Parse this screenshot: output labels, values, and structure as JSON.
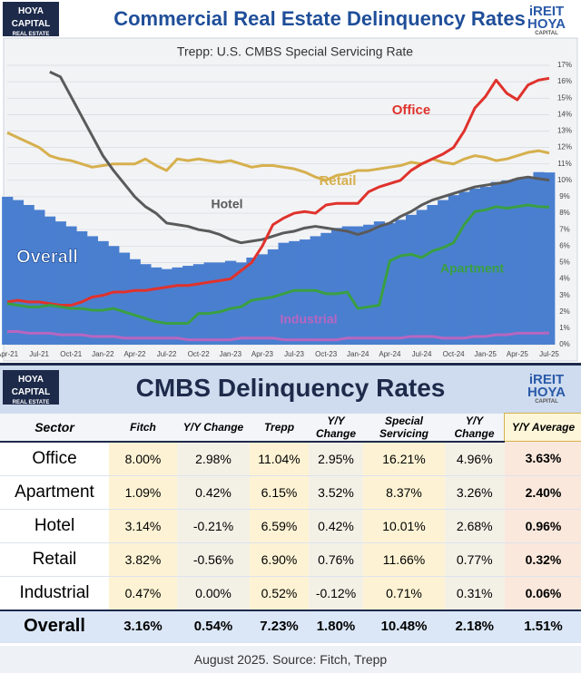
{
  "header": {
    "logo": "HOYA CAPITAL",
    "logo_sub": "REAL ESTATE",
    "brand_top": "iREIT",
    "brand_bottom": "HOYA",
    "brand_sub": "CAPITAL"
  },
  "chart_data": {
    "type": "line",
    "title": "Commercial Real Estate Delinquency Rates",
    "subtitle": "Trepp: U.S. CMBS Special Servicing Rate",
    "categories": [
      "Apr-21",
      null,
      null,
      "Jul-21",
      null,
      null,
      "Oct-21",
      null,
      null,
      "Jan-22",
      null,
      null,
      "Apr-22",
      null,
      null,
      "Jul-22",
      null,
      null,
      "Oct-22",
      null,
      null,
      "Jan-23",
      null,
      null,
      "Apr-23",
      null,
      null,
      "Jul-23",
      null,
      null,
      "Oct-23",
      null,
      null,
      "Jan-24",
      null,
      null,
      "Apr-24",
      null,
      null,
      "Jul-24",
      null,
      null,
      "Oct-24",
      null,
      null,
      "Jan-25",
      null,
      null,
      "Apr-25",
      null,
      null,
      "Jul-25"
    ],
    "series": [
      {
        "name": "Overall",
        "color": "#4a7fd0",
        "style": "column",
        "values": [
          9.0,
          8.8,
          8.5,
          8.2,
          7.8,
          7.5,
          7.2,
          6.9,
          6.6,
          6.3,
          6.0,
          5.6,
          5.2,
          4.9,
          4.7,
          4.6,
          4.7,
          4.8,
          4.9,
          5.0,
          5.0,
          5.1,
          5.0,
          5.3,
          5.5,
          5.8,
          6.2,
          6.3,
          6.4,
          6.6,
          6.8,
          7.1,
          7.2,
          7.2,
          7.3,
          7.5,
          7.4,
          7.6,
          7.9,
          8.2,
          8.5,
          8.8,
          9.1,
          9.3,
          9.5,
          9.6,
          9.9,
          10.0,
          10.1,
          10.2,
          10.5,
          10.48
        ]
      },
      {
        "name": "Retail",
        "color": "#d6b04e",
        "values": [
          12.9,
          12.6,
          12.3,
          12.0,
          11.5,
          11.3,
          11.2,
          11.0,
          10.8,
          10.9,
          11.0,
          11.0,
          11.0,
          11.3,
          10.9,
          10.6,
          11.3,
          11.2,
          11.3,
          11.2,
          11.1,
          11.2,
          11.0,
          10.8,
          10.9,
          10.9,
          10.8,
          10.7,
          10.5,
          10.2,
          10.0,
          10.3,
          10.4,
          10.6,
          10.6,
          10.7,
          10.8,
          10.9,
          11.1,
          11.0,
          11.3,
          11.1,
          11.0,
          11.3,
          11.5,
          11.4,
          11.2,
          11.3,
          11.5,
          11.7,
          11.8,
          11.66
        ]
      },
      {
        "name": "Hotel",
        "color": "#5a5a5a",
        "values": [
          null,
          null,
          null,
          null,
          16.6,
          16.3,
          15.1,
          13.9,
          12.7,
          11.5,
          10.6,
          9.8,
          9.0,
          8.4,
          8.0,
          7.4,
          7.3,
          7.2,
          7.0,
          6.9,
          6.7,
          6.4,
          6.2,
          6.3,
          6.4,
          6.6,
          6.8,
          6.9,
          7.1,
          7.2,
          7.1,
          7.0,
          6.9,
          6.7,
          6.9,
          7.2,
          7.4,
          7.8,
          8.1,
          8.5,
          8.8,
          9.0,
          9.2,
          9.4,
          9.6,
          9.7,
          9.8,
          9.9,
          10.1,
          10.2,
          10.1,
          10.01
        ]
      },
      {
        "name": "Office",
        "color": "#e0322c",
        "values": [
          2.6,
          2.7,
          2.6,
          2.6,
          2.5,
          2.4,
          2.4,
          2.6,
          2.9,
          3.0,
          3.2,
          3.2,
          3.3,
          3.3,
          3.4,
          3.5,
          3.6,
          3.6,
          3.7,
          3.8,
          3.9,
          4.0,
          4.5,
          5.0,
          6.0,
          7.3,
          7.7,
          8.0,
          8.1,
          8.0,
          8.5,
          8.6,
          8.6,
          8.6,
          9.3,
          9.6,
          9.8,
          10.0,
          10.6,
          11.0,
          11.3,
          11.6,
          12.0,
          13.0,
          14.4,
          15.1,
          16.1,
          15.3,
          14.9,
          15.8,
          16.1,
          16.21
        ]
      },
      {
        "name": "Apartment",
        "color": "#3a9f42",
        "values": [
          2.5,
          2.4,
          2.3,
          2.3,
          2.4,
          2.3,
          2.2,
          2.2,
          2.1,
          2.1,
          2.2,
          2.0,
          1.8,
          1.6,
          1.4,
          1.3,
          1.3,
          1.3,
          1.9,
          1.9,
          2.0,
          2.2,
          2.3,
          2.7,
          2.8,
          2.9,
          3.1,
          3.3,
          3.3,
          3.3,
          3.1,
          3.1,
          3.2,
          2.2,
          2.3,
          2.4,
          5.1,
          5.4,
          5.5,
          5.3,
          5.7,
          5.9,
          6.2,
          7.3,
          8.1,
          8.2,
          8.4,
          8.3,
          8.4,
          8.5,
          8.4,
          8.37
        ]
      },
      {
        "name": "Industrial",
        "color": "#b866c0",
        "values": [
          0.8,
          0.8,
          0.7,
          0.7,
          0.7,
          0.6,
          0.6,
          0.6,
          0.5,
          0.5,
          0.5,
          0.4,
          0.4,
          0.4,
          0.4,
          0.4,
          0.4,
          0.3,
          0.3,
          0.3,
          0.3,
          0.3,
          0.4,
          0.4,
          0.4,
          0.4,
          0.3,
          0.3,
          0.3,
          0.3,
          0.3,
          0.3,
          0.4,
          0.4,
          0.4,
          0.4,
          0.4,
          0.4,
          0.5,
          0.5,
          0.5,
          0.4,
          0.4,
          0.4,
          0.5,
          0.5,
          0.6,
          0.6,
          0.7,
          0.7,
          0.7,
          0.71
        ]
      }
    ],
    "ylim": [
      0,
      17
    ],
    "yticks": [
      {
        "value": 0,
        "label": "0%"
      },
      {
        "value": 1,
        "label": "1%"
      },
      {
        "value": 2,
        "label": "2%"
      },
      {
        "value": 3,
        "label": "3%"
      },
      {
        "value": 4,
        "label": "4%"
      },
      {
        "value": 5,
        "label": "5%"
      },
      {
        "value": 6,
        "label": "6%"
      },
      {
        "value": 7,
        "label": "7%"
      },
      {
        "value": 8,
        "label": "8%"
      },
      {
        "value": 9,
        "label": "9%"
      },
      {
        "value": 10,
        "label": "10%"
      },
      {
        "value": 11,
        "label": "11%"
      },
      {
        "value": 12,
        "label": "12%"
      },
      {
        "value": 13,
        "label": "13%"
      },
      {
        "value": 14,
        "label": "14%"
      },
      {
        "value": 15,
        "label": "15%"
      },
      {
        "value": 16,
        "label": "16%"
      },
      {
        "value": 17,
        "label": "17%"
      }
    ],
    "grid": true
  },
  "table": {
    "title": "CMBS Delinquency Rates",
    "columns": [
      "Sector",
      "Fitch",
      "Y/Y Change",
      "Trepp",
      "Y/Y Change",
      "Special Servicing",
      "Y/Y Change",
      "Y/Y Average"
    ],
    "rows": [
      [
        "Office",
        "8.00%",
        "2.98%",
        "11.04%",
        "2.95%",
        "16.21%",
        "4.96%",
        "3.63%"
      ],
      [
        "Apartment",
        "1.09%",
        "0.42%",
        "6.15%",
        "3.52%",
        "8.37%",
        "3.26%",
        "2.40%"
      ],
      [
        "Hotel",
        "3.14%",
        "-0.21%",
        "6.59%",
        "0.42%",
        "10.01%",
        "2.68%",
        "0.96%"
      ],
      [
        "Retail",
        "3.82%",
        "-0.56%",
        "6.90%",
        "0.76%",
        "11.66%",
        "0.77%",
        "0.32%"
      ],
      [
        "Industrial",
        "0.47%",
        "0.00%",
        "0.52%",
        "-0.12%",
        "0.71%",
        "0.31%",
        "0.06%"
      ],
      [
        "Overall",
        "3.16%",
        "0.54%",
        "7.23%",
        "1.80%",
        "10.48%",
        "2.18%",
        "1.51%"
      ]
    ],
    "footer": "August 2025. Source: Fitch, Trepp"
  }
}
